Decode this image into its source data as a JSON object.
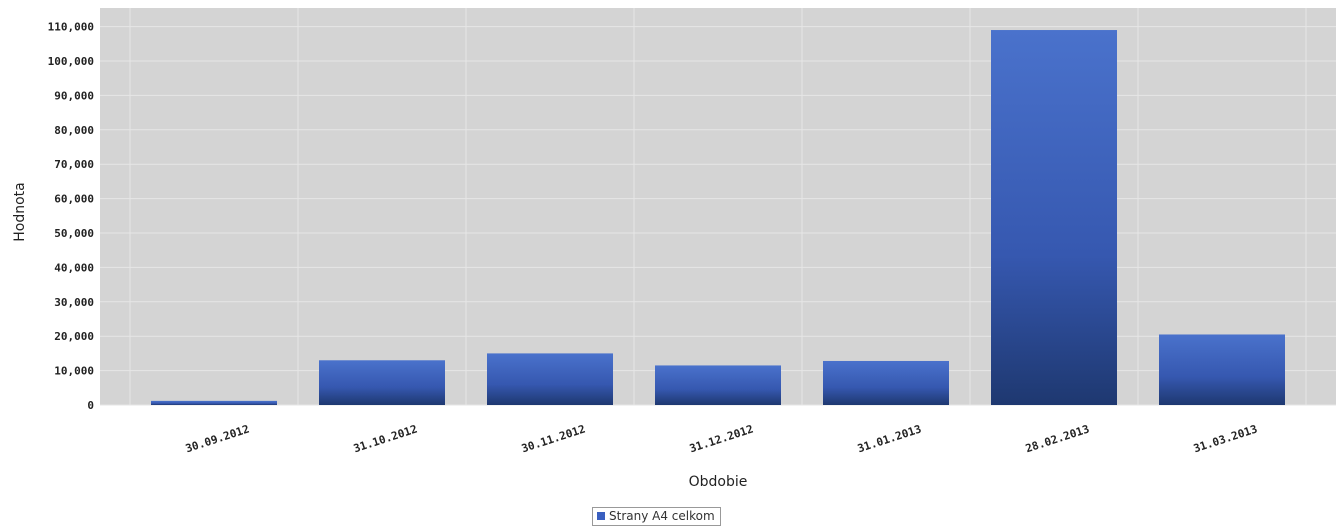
{
  "chart_data": {
    "type": "bar",
    "title": "",
    "xlabel": "Obdobie",
    "ylabel": "Hodnota",
    "ylim": [
      0,
      110000
    ],
    "y_ticks": [
      0,
      10000,
      20000,
      30000,
      40000,
      50000,
      60000,
      70000,
      80000,
      90000,
      100000,
      110000
    ],
    "y_tick_labels": [
      "0",
      "10,000",
      "20,000",
      "30,000",
      "40,000",
      "50,000",
      "60,000",
      "70,000",
      "80,000",
      "90,000",
      "100,000",
      "110,000"
    ],
    "categories": [
      "30.09.2012",
      "31.10.2012",
      "30.11.2012",
      "31.12.2012",
      "31.01.2013",
      "28.02.2013",
      "31.03.2013"
    ],
    "series": [
      {
        "name": "Strany A4 celkom",
        "values": [
          1200,
          13000,
          15000,
          11500,
          12800,
          109000,
          20500
        ]
      }
    ],
    "grid": true,
    "legend": "bottom-center",
    "colors": {
      "bar_top": "#4a72cc",
      "bar_bottom": "#1e3870",
      "plot_bg": "#d4d4d4",
      "grid": "#e8e8e8"
    }
  }
}
